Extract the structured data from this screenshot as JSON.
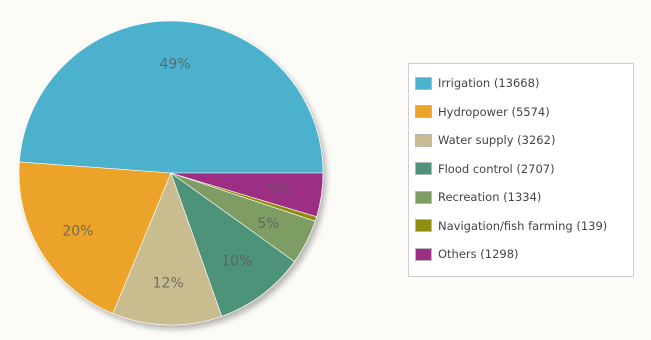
{
  "chart_data": {
    "type": "pie",
    "title": "",
    "start_angle_deg": 0,
    "slices": [
      {
        "label": "Irrigation",
        "value": 13668,
        "percent_label": "49%",
        "color": "#4cb1cd"
      },
      {
        "label": "Hydropower",
        "value": 5574,
        "percent_label": "20%",
        "color": "#eba32b"
      },
      {
        "label": "Water supply",
        "value": 3262,
        "percent_label": "12%",
        "color": "#c9bc8f"
      },
      {
        "label": "Flood control",
        "value": 2707,
        "percent_label": "10%",
        "color": "#4e9379"
      },
      {
        "label": "Recreation",
        "value": 1334,
        "percent_label": "5%",
        "color": "#7d9d65"
      },
      {
        "label": "Navigation/fish farming",
        "value": 139,
        "percent_label": "",
        "color": "#8f8f0e"
      },
      {
        "label": "Others",
        "value": 1298,
        "percent_label": "5%",
        "color": "#9c2f83"
      }
    ],
    "legend": {
      "position": "right",
      "entries": [
        "Irrigation (13668)",
        "Hydropower (5574)",
        "Water supply (3262)",
        "Flood control (2707)",
        "Recreation (1334)",
        "Navigation/fish farming (139)",
        "Others (1298)"
      ]
    }
  }
}
